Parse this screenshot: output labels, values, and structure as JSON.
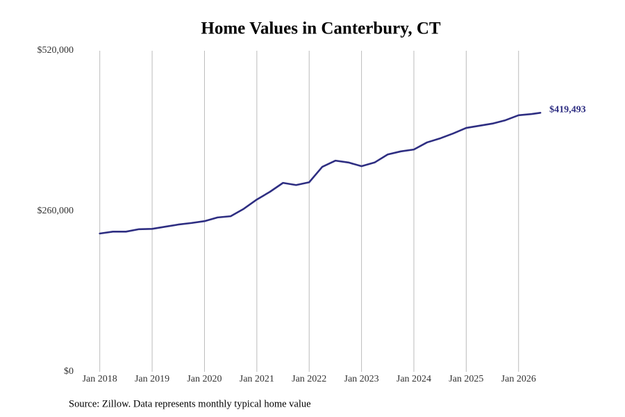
{
  "chart_data": {
    "type": "line",
    "title": "Home Values in Canterbury, CT",
    "source": "Source: Zillow. Data represents monthly typical home value",
    "x": [
      "2018-01",
      "2018-04",
      "2018-07",
      "2018-10",
      "2019-01",
      "2019-04",
      "2019-07",
      "2019-10",
      "2020-01",
      "2020-04",
      "2020-07",
      "2020-10",
      "2021-01",
      "2021-04",
      "2021-07",
      "2021-10",
      "2022-01",
      "2022-04",
      "2022-07",
      "2022-10",
      "2023-01",
      "2023-04",
      "2023-07",
      "2023-10",
      "2024-01",
      "2024-04",
      "2024-07",
      "2024-10",
      "2025-01",
      "2025-04",
      "2025-07",
      "2025-10",
      "2026-01",
      "2026-04",
      "2026-06"
    ],
    "series": [
      {
        "name": "Typical home value",
        "color": "#2e2e82",
        "values": [
          224000,
          227000,
          227000,
          231000,
          231500,
          235000,
          238500,
          241000,
          244000,
          250000,
          252000,
          264000,
          279000,
          291500,
          306000,
          302500,
          307000,
          332000,
          342000,
          339000,
          333000,
          339000,
          352000,
          357000,
          360000,
          371500,
          378000,
          386000,
          395000,
          398500,
          402000,
          407500,
          415500,
          417500,
          419493
        ],
        "value_labels": [
          null,
          null,
          null,
          null,
          null,
          null,
          null,
          null,
          null,
          null,
          null,
          null,
          null,
          null,
          null,
          null,
          null,
          null,
          null,
          null,
          null,
          null,
          null,
          null,
          null,
          null,
          null,
          null,
          null,
          null,
          null,
          null,
          null,
          null,
          "$419,493"
        ]
      }
    ],
    "xlim": [
      "2017-07",
      "2026-09"
    ],
    "xticks": [
      {
        "value": "2018-01",
        "label": "Jan 2018"
      },
      {
        "value": "2019-01",
        "label": "Jan 2019"
      },
      {
        "value": "2020-01",
        "label": "Jan 2020"
      },
      {
        "value": "2021-01",
        "label": "Jan 2021"
      },
      {
        "value": "2022-01",
        "label": "Jan 2022"
      },
      {
        "value": "2023-01",
        "label": "Jan 2023"
      },
      {
        "value": "2024-01",
        "label": "Jan 2024"
      },
      {
        "value": "2025-01",
        "label": "Jan 2025"
      },
      {
        "value": "2026-01",
        "label": "Jan 2026"
      }
    ],
    "ylim": [
      0,
      520000
    ],
    "yticks": [
      {
        "value": 0,
        "label": "$0"
      },
      {
        "value": 260000,
        "label": "$260,000"
      },
      {
        "value": 520000,
        "label": "$520,000"
      }
    ],
    "grid": "x"
  }
}
